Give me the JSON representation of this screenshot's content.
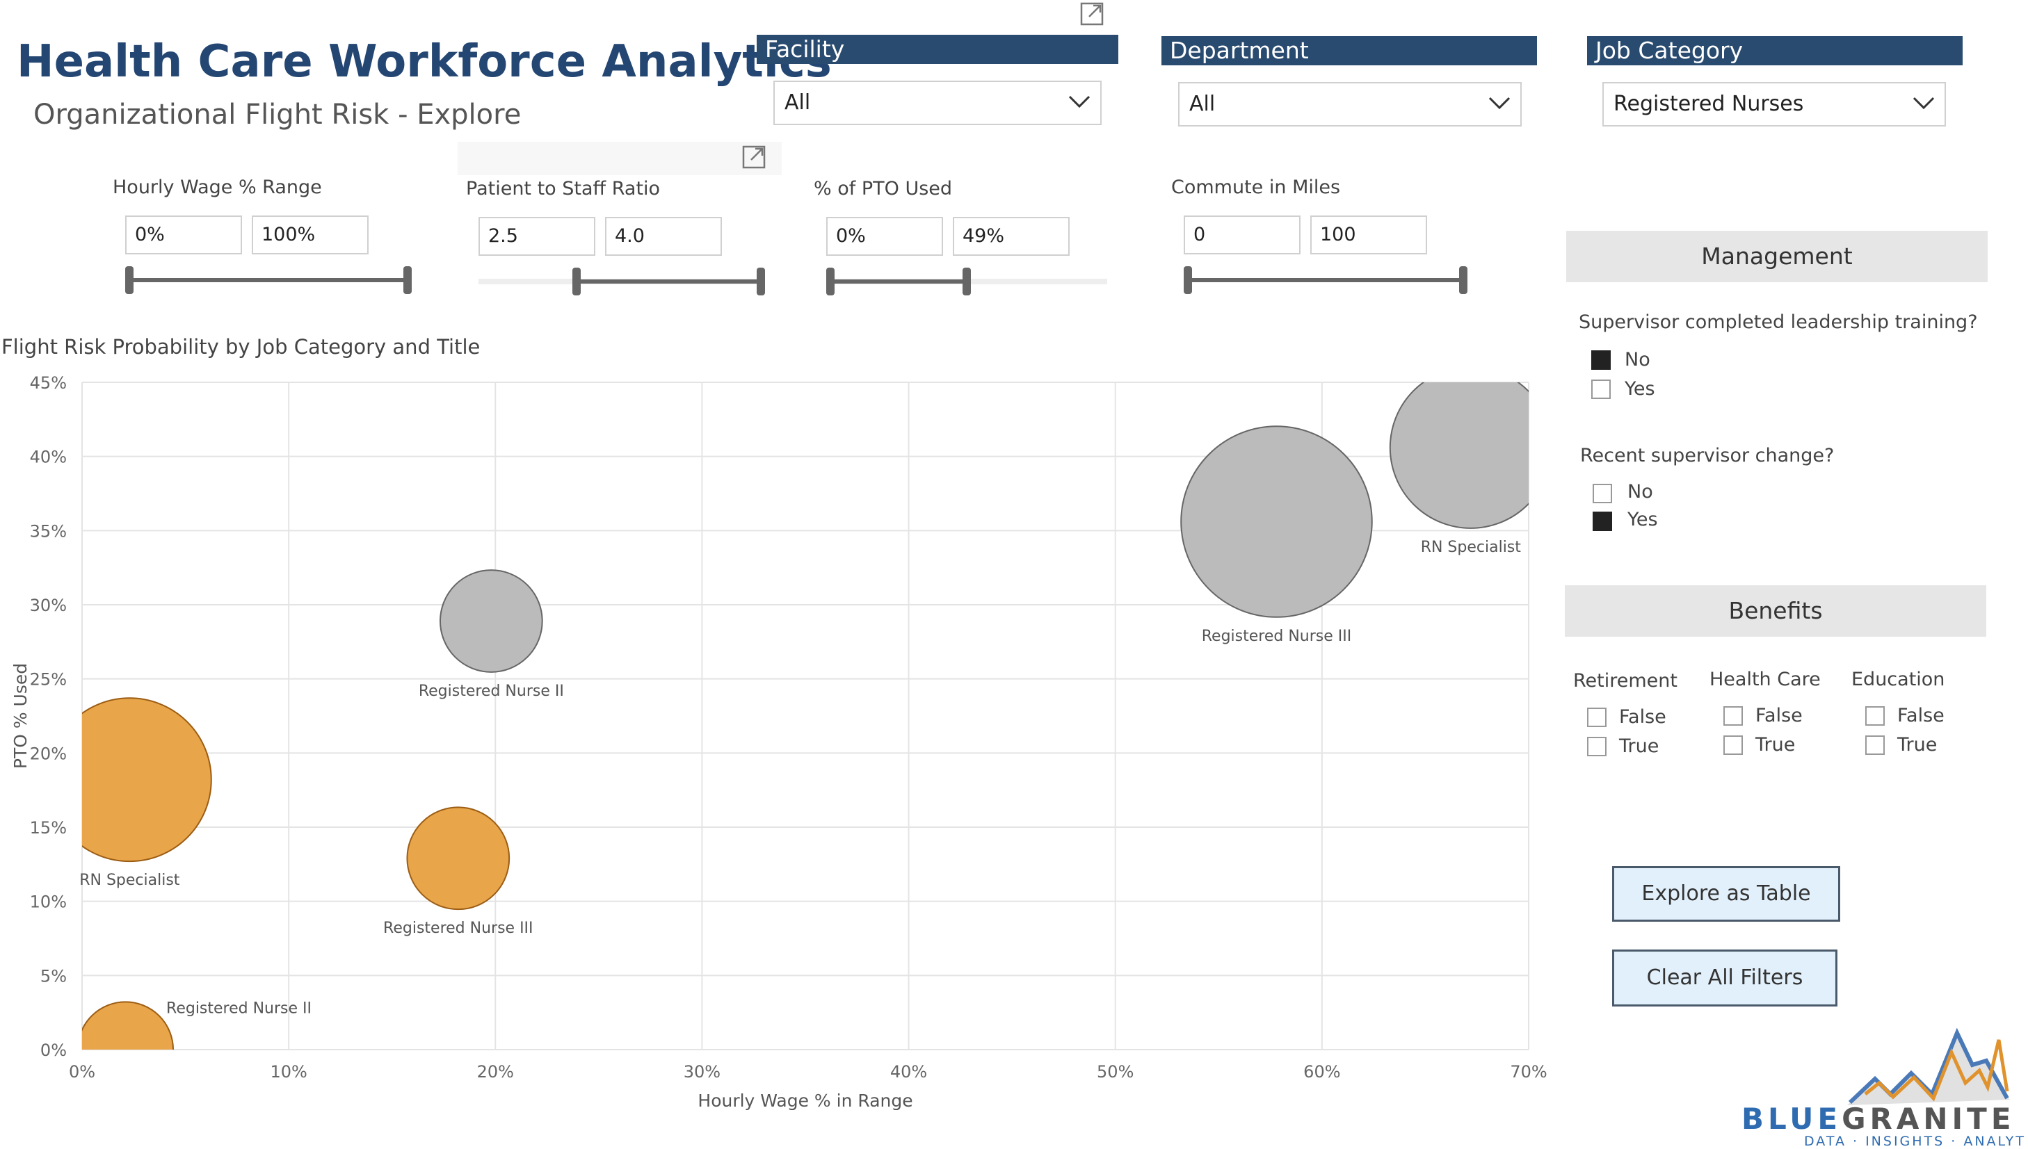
{
  "header": {
    "title": "Health Care Workforce Analytics",
    "subtitle": "Organizational Flight Risk - Explore"
  },
  "slicers": {
    "facility": {
      "label": "Facility",
      "value": "All"
    },
    "department": {
      "label": "Department",
      "value": "All"
    },
    "job_category": {
      "label": "Job Category",
      "value": "Registered Nurses"
    }
  },
  "ranges": {
    "hourly_wage": {
      "label": "Hourly Wage % Range",
      "min": "0%",
      "max": "100%",
      "selected_fraction": [
        0.0,
        1.0
      ]
    },
    "staff_ratio": {
      "label": "Patient to Staff Ratio",
      "min": "2.5",
      "max": "4.0",
      "selected_fraction": [
        0.35,
        1.0
      ]
    },
    "pto_used": {
      "label": "% of PTO Used",
      "min": "0%",
      "max": "49%",
      "selected_fraction": [
        0.0,
        0.49
      ]
    },
    "commute": {
      "label": "Commute in Miles",
      "min": "0",
      "max": "100",
      "selected_fraction": [
        0.0,
        1.0
      ]
    }
  },
  "management": {
    "header": "Management",
    "q1": {
      "question": "Supervisor completed leadership training?",
      "options": [
        {
          "label": "No",
          "checked": true
        },
        {
          "label": "Yes",
          "checked": false
        }
      ]
    },
    "q2": {
      "question": "Recent supervisor change?",
      "options": [
        {
          "label": "No",
          "checked": false
        },
        {
          "label": "Yes",
          "checked": true
        }
      ]
    }
  },
  "benefits": {
    "header": "Benefits",
    "groups": [
      {
        "label": "Retirement",
        "options": [
          "False",
          "True"
        ]
      },
      {
        "label": "Health Care",
        "options": [
          "False",
          "True"
        ]
      },
      {
        "label": "Education",
        "options": [
          "False",
          "True"
        ]
      }
    ]
  },
  "buttons": {
    "explore_table": "Explore as Table",
    "clear_filters": "Clear All Filters"
  },
  "logo": {
    "name": "BLUEGRANITE",
    "name_blue": "BLUE",
    "name_gray": "GRANITE",
    "tagline": "DATA · INSIGHTS · ANALYTICS"
  },
  "icons": {
    "focus": "focus-mode-icon",
    "chevron": "chevron-down-icon"
  },
  "colors": {
    "accent": "#2a4b70",
    "orange": "#e8a54a",
    "gray_bubble": "#bbbbbb"
  },
  "chart_data": {
    "type": "scatter",
    "title": "Flight Risk Probability by Job Category and Title",
    "xlabel": "Hourly Wage % in Range",
    "ylabel": "PTO % Used",
    "xlim": [
      0,
      70
    ],
    "ylim": [
      0,
      45
    ],
    "x_ticks": [
      "0%",
      "10%",
      "20%",
      "30%",
      "40%",
      "50%",
      "60%",
      "70%"
    ],
    "y_ticks": [
      "0%",
      "5%",
      "10%",
      "15%",
      "20%",
      "25%",
      "30%",
      "35%",
      "40%",
      "45%"
    ],
    "grid": true,
    "points": [
      {
        "label": "RN Specialist",
        "x": 2.3,
        "y": 18.2,
        "size": 4.1,
        "color": "#e8a54a",
        "stroke": "#9c5d14"
      },
      {
        "label": "Registered Nurse III",
        "x": 18.2,
        "y": 12.9,
        "size": 1.6,
        "color": "#e8a54a",
        "stroke": "#9c5d14"
      },
      {
        "label": "Registered Nurse II",
        "x": 2.1,
        "y": 0.0,
        "size": 1.4,
        "color": "#e8a54a",
        "stroke": "#9c5d14"
      },
      {
        "label": "Registered Nurse II",
        "x": 19.8,
        "y": 28.9,
        "size": 1.6,
        "color": "#bbbbbb",
        "stroke": "#666666"
      },
      {
        "label": "Registered Nurse III",
        "x": 57.8,
        "y": 35.6,
        "size": 5.6,
        "color": "#bbbbbb",
        "stroke": "#666666"
      },
      {
        "label": "RN Specialist",
        "x": 67.2,
        "y": 40.6,
        "size": 4.0,
        "color": "#bbbbbb",
        "stroke": "#666666"
      }
    ]
  }
}
